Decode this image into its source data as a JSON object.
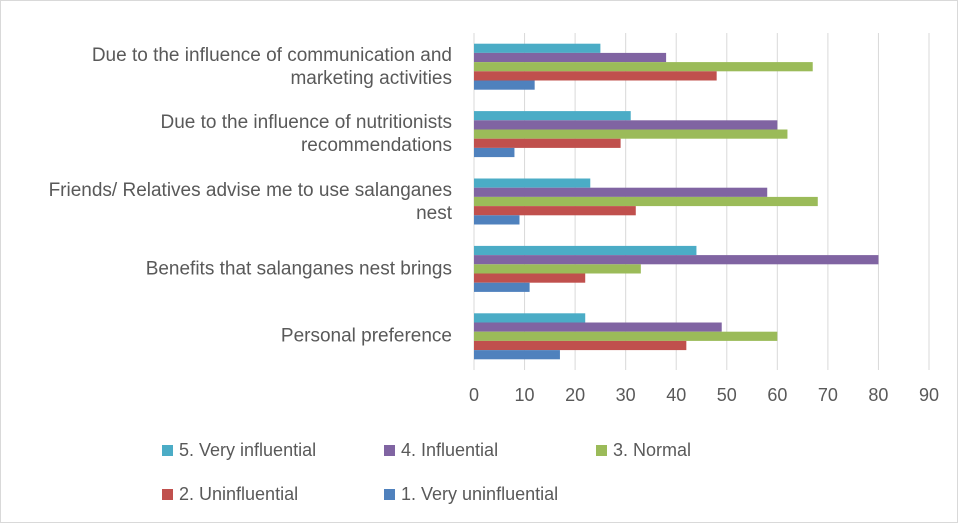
{
  "chart_data": {
    "type": "bar",
    "orientation": "horizontal",
    "categories": [
      "Due to the influence of communication and marketing activities",
      "Due to the influence of nutritionists recommendations",
      "Friends/ Relatives advise me to use salanganes nest",
      "Benefits that salanganes nest brings",
      "Personal preference"
    ],
    "series": [
      {
        "name": "5. Very influential",
        "color": "#4bacc6",
        "values": [
          25,
          31,
          23,
          44,
          22
        ]
      },
      {
        "name": "4. Influential",
        "color": "#8064a2",
        "values": [
          38,
          60,
          58,
          80,
          49
        ]
      },
      {
        "name": "3. Normal",
        "color": "#9bbb59",
        "values": [
          67,
          62,
          68,
          33,
          60
        ]
      },
      {
        "name": "2. Uninfluential",
        "color": "#c0504d",
        "values": [
          48,
          29,
          32,
          22,
          42
        ]
      },
      {
        "name": "1. Very uninfluential",
        "color": "#4f81bd",
        "values": [
          12,
          8,
          9,
          11,
          17
        ]
      }
    ],
    "xlim": [
      0,
      90
    ],
    "xticks": [
      0,
      10,
      20,
      30,
      40,
      50,
      60,
      70,
      80,
      90
    ],
    "grid": true,
    "legend": "bottom"
  }
}
